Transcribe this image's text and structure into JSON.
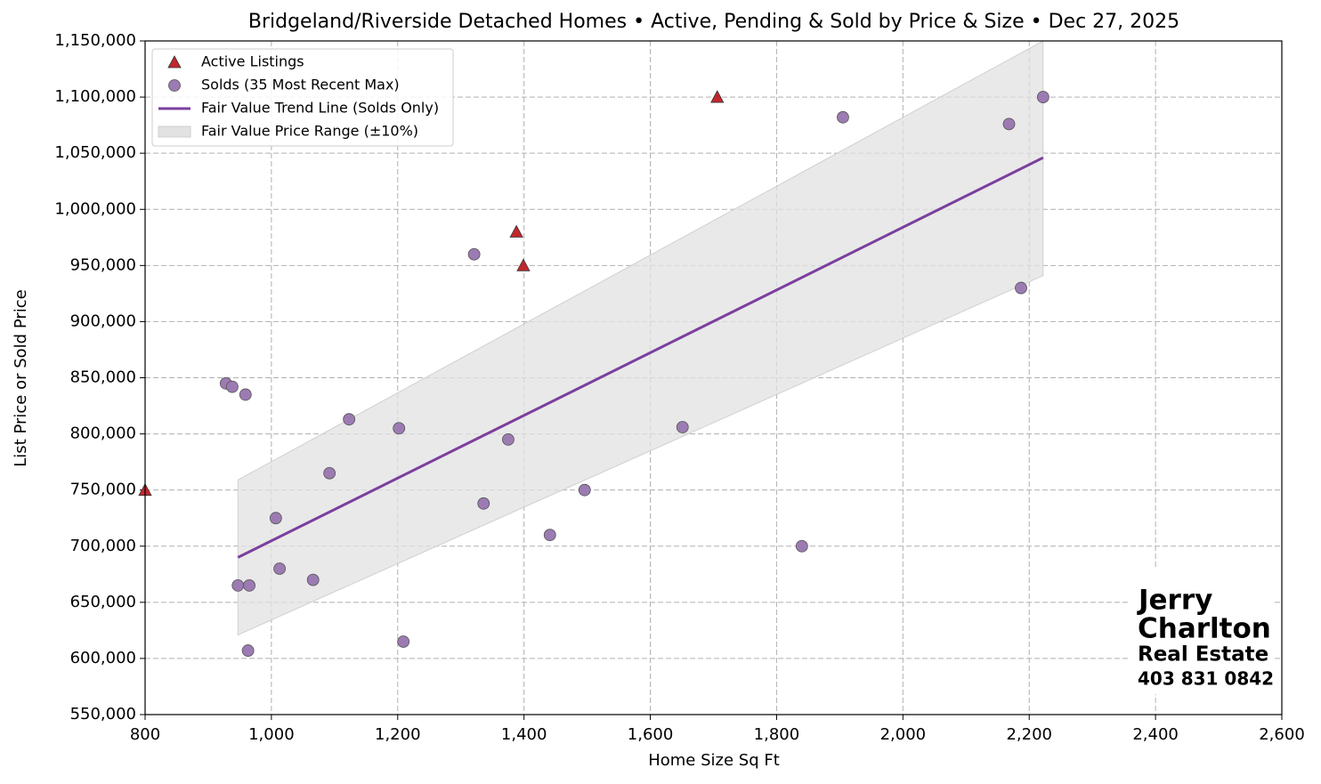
{
  "chart_data": {
    "type": "scatter",
    "title": "Bridgeland/Riverside Detached Homes • Active, Pending & Sold by Price & Size • Dec 27, 2025",
    "x_label": "Home Size Sq Ft",
    "y_label": "List Price or Sold Price",
    "xlim": [
      800,
      2600
    ],
    "ylim": [
      550000,
      1150000
    ],
    "xticks": [
      800,
      {
        "value": 1000,
        "label": "1,000"
      },
      {
        "value": 1200,
        "label": "1,200"
      },
      {
        "value": 1400,
        "label": "1,400"
      },
      {
        "value": 1600,
        "label": "1,600"
      },
      {
        "value": 1800,
        "label": "1,800"
      },
      {
        "value": 2000,
        "label": "2,000"
      },
      {
        "value": 2200,
        "label": "2,200"
      },
      {
        "value": 2400,
        "label": "2,400"
      },
      {
        "value": 2600,
        "label": "2,600"
      }
    ],
    "yticks": [
      {
        "value": 550000,
        "label": "550,000"
      },
      {
        "value": 600000,
        "label": "600,000"
      },
      {
        "value": 650000,
        "label": "650,000"
      },
      {
        "value": 700000,
        "label": "700,000"
      },
      {
        "value": 750000,
        "label": "750,000"
      },
      {
        "value": 800000,
        "label": "800,000"
      },
      {
        "value": 850000,
        "label": "850,000"
      },
      {
        "value": 900000,
        "label": "900,000"
      },
      {
        "value": 950000,
        "label": "950,000"
      },
      {
        "value": 1000000,
        "label": "1,000,000"
      },
      {
        "value": 1050000,
        "label": "1,050,000"
      },
      {
        "value": 1100000,
        "label": "1,100,000"
      },
      {
        "value": 1150000,
        "label": "1,150,000"
      }
    ],
    "grid": true,
    "legend": "upper left",
    "series": [
      {
        "name": "Active Listings",
        "marker": "triangle",
        "color": "#c1272d",
        "x": [
          800,
          1388,
          1399,
          1706
        ],
        "values": [
          750000,
          980000,
          950000,
          1100000
        ]
      },
      {
        "name": "Solds (35 Most Recent Max)",
        "marker": "circle",
        "color": "#9c7bb3",
        "x": [
          928,
          938,
          959,
          1123,
          1202,
          1092,
          1007,
          1013,
          1066,
          947,
          965,
          963,
          1209,
          1321,
          1375,
          1336,
          1441,
          1496,
          1651,
          1840,
          1905,
          2168,
          2187,
          2222
        ],
        "values": [
          845000,
          842000,
          835000,
          813000,
          805000,
          765000,
          725000,
          680000,
          670000,
          665000,
          665000,
          607000,
          615000,
          960000,
          795000,
          738000,
          710000,
          750000,
          806000,
          700000,
          1082000,
          1076000,
          930000,
          1100000
        ]
      },
      {
        "name": "Fair Value Trend Line (Solds Only)",
        "marker": "line",
        "color": "#7b3f9e",
        "x": [
          947,
          2222
        ],
        "values": [
          690000,
          1046000
        ]
      },
      {
        "name": "Fair Value Price Range (±10%)",
        "marker": "band",
        "color": "#e2e2e2",
        "x": [
          947,
          2222
        ],
        "lower": [
          621000,
          941000
        ],
        "upper": [
          759000,
          1150000
        ]
      }
    ],
    "logo": [
      "Jerry",
      "Charlton",
      "Real Estate",
      "403 831 0842"
    ]
  }
}
